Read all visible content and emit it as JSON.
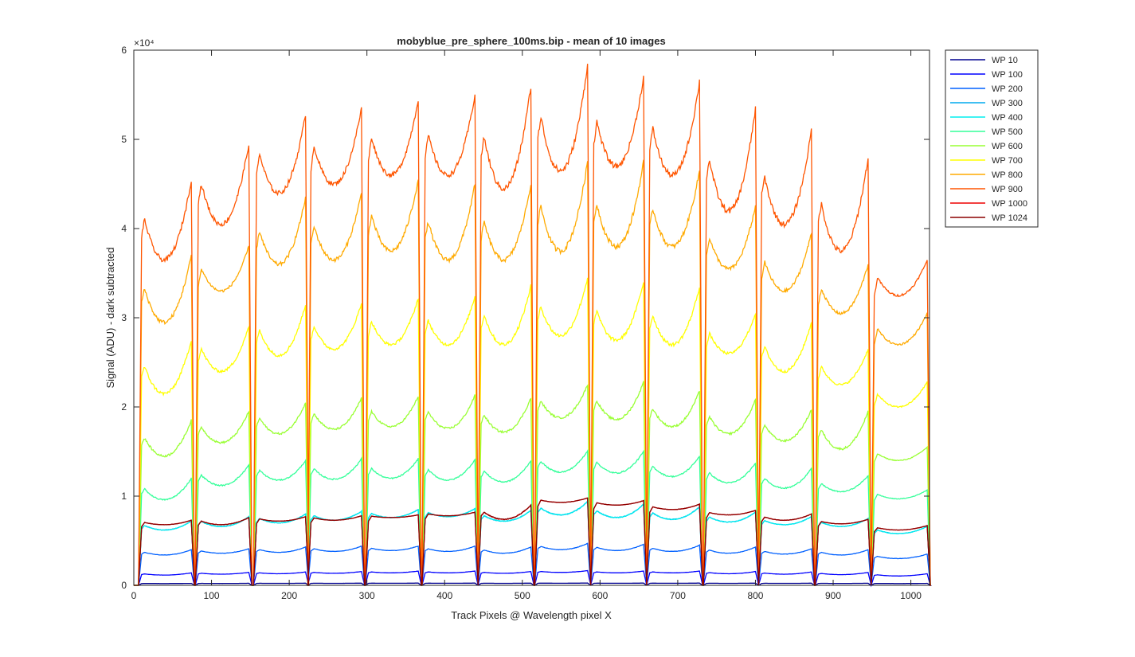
{
  "chart_data": {
    "type": "line",
    "title": "mobyblue_pre_sphere_100ms.bip - mean of 10 images",
    "xlabel": "Track Pixels @ Wavelength pixel X",
    "ylabel": "Signal (ADU) - dark subtracted",
    "xlim": [
      0,
      1024
    ],
    "ylim": [
      0,
      60000
    ],
    "x_ticks": [
      0,
      100,
      200,
      300,
      400,
      500,
      600,
      700,
      800,
      900,
      1000
    ],
    "x_tick_labels": [
      "0",
      "100",
      "200",
      "300",
      "400",
      "500",
      "600",
      "700",
      "800",
      "900",
      "1000"
    ],
    "y_ticks": [
      0,
      10000,
      20000,
      30000,
      40000,
      50000,
      60000
    ],
    "y_tick_labels": [
      "0",
      "1",
      "2",
      "3",
      "4",
      "5",
      "6"
    ],
    "y_exponent_label": "×10⁴",
    "grid": false,
    "legend_position": "outside-top-right",
    "tracks": [
      [
        10,
        74
      ],
      [
        83,
        148
      ],
      [
        158,
        221
      ],
      [
        228,
        293
      ],
      [
        302,
        366
      ],
      [
        375,
        439
      ],
      [
        447,
        511
      ],
      [
        520,
        584
      ],
      [
        592,
        656
      ],
      [
        664,
        728
      ],
      [
        737,
        800
      ],
      [
        808,
        872
      ],
      [
        881,
        945
      ],
      [
        953,
        1021
      ]
    ],
    "series": [
      {
        "name": "WP 10",
        "color": "#00008f",
        "track_levels": [
          [
            200,
            220
          ],
          [
            210,
            230
          ],
          [
            220,
            240
          ],
          [
            225,
            245
          ],
          [
            230,
            250
          ],
          [
            230,
            250
          ],
          [
            225,
            245
          ],
          [
            235,
            255
          ],
          [
            230,
            250
          ],
          [
            230,
            250
          ],
          [
            225,
            245
          ],
          [
            220,
            240
          ],
          [
            215,
            235
          ],
          [
            200,
            220
          ]
        ]
      },
      {
        "name": "WP 100",
        "color": "#0000ff",
        "track_levels": [
          [
            1150,
            1400
          ],
          [
            1250,
            1450
          ],
          [
            1300,
            1500
          ],
          [
            1350,
            1550
          ],
          [
            1400,
            1600
          ],
          [
            1400,
            1600
          ],
          [
            1350,
            1550
          ],
          [
            1450,
            1650
          ],
          [
            1400,
            1600
          ],
          [
            1400,
            1600
          ],
          [
            1300,
            1550
          ],
          [
            1250,
            1500
          ],
          [
            1200,
            1450
          ],
          [
            1050,
            1300
          ]
        ]
      },
      {
        "name": "WP 200",
        "color": "#0060ff",
        "track_levels": [
          [
            3400,
            4000
          ],
          [
            3600,
            4100
          ],
          [
            3700,
            4300
          ],
          [
            3800,
            4400
          ],
          [
            3900,
            4400
          ],
          [
            3800,
            4400
          ],
          [
            3600,
            4300
          ],
          [
            4000,
            4700
          ],
          [
            3900,
            4600
          ],
          [
            3800,
            4500
          ],
          [
            3600,
            4300
          ],
          [
            3500,
            4100
          ],
          [
            3400,
            4000
          ],
          [
            3000,
            3500
          ]
        ]
      },
      {
        "name": "WP 300",
        "color": "#00aaee",
        "track_levels": [
          [
            6200,
            7200
          ],
          [
            6600,
            7700
          ],
          [
            7000,
            8000
          ],
          [
            7300,
            8300
          ],
          [
            7600,
            8500
          ],
          [
            7700,
            8600
          ],
          [
            7200,
            8400
          ],
          [
            7900,
            9400
          ],
          [
            7600,
            9100
          ],
          [
            7400,
            8800
          ],
          [
            7100,
            8200
          ],
          [
            6800,
            7700
          ],
          [
            6600,
            7500
          ],
          [
            5800,
            6600
          ]
        ]
      },
      {
        "name": "WP 400",
        "color": "#00eeee",
        "track_levels": [
          [
            6200,
            7200
          ],
          [
            6600,
            7700
          ],
          [
            7000,
            8000
          ],
          [
            7300,
            8300
          ],
          [
            7600,
            8500
          ],
          [
            7700,
            8600
          ],
          [
            7200,
            8400
          ],
          [
            7900,
            9400
          ],
          [
            7600,
            9100
          ],
          [
            7400,
            8800
          ],
          [
            7100,
            8200
          ],
          [
            6800,
            7700
          ],
          [
            6600,
            7500
          ],
          [
            5800,
            6600
          ]
        ]
      },
      {
        "name": "WP 500",
        "color": "#33ff99",
        "track_levels": [
          [
            9600,
            12000
          ],
          [
            11200,
            13500
          ],
          [
            11800,
            14000
          ],
          [
            11900,
            14200
          ],
          [
            12000,
            14200
          ],
          [
            11800,
            14100
          ],
          [
            11600,
            14000
          ],
          [
            12700,
            15100
          ],
          [
            12600,
            15000
          ],
          [
            12200,
            14500
          ],
          [
            11500,
            13700
          ],
          [
            10900,
            13100
          ],
          [
            10500,
            12300
          ],
          [
            9700,
            10700
          ]
        ]
      },
      {
        "name": "WP 600",
        "color": "#99ff33",
        "track_levels": [
          [
            14500,
            18500
          ],
          [
            16000,
            19500
          ],
          [
            17000,
            20500
          ],
          [
            17500,
            21000
          ],
          [
            17800,
            21200
          ],
          [
            17600,
            21300
          ],
          [
            17200,
            21000
          ],
          [
            18800,
            22500
          ],
          [
            18600,
            22800
          ],
          [
            17800,
            21800
          ],
          [
            17000,
            20800
          ],
          [
            16200,
            19700
          ],
          [
            15300,
            19500
          ],
          [
            14000,
            15500
          ]
        ]
      },
      {
        "name": "WP 700",
        "color": "#ffff00",
        "track_levels": [
          [
            21500,
            27500
          ],
          [
            24000,
            29000
          ],
          [
            25800,
            31500
          ],
          [
            26500,
            31600
          ],
          [
            27000,
            32200
          ],
          [
            27000,
            32400
          ],
          [
            27000,
            33600
          ],
          [
            28000,
            34500
          ],
          [
            27500,
            34000
          ],
          [
            27000,
            33500
          ],
          [
            26000,
            30500
          ],
          [
            24000,
            29500
          ],
          [
            22500,
            26500
          ],
          [
            20000,
            22800
          ]
        ]
      },
      {
        "name": "WP 800",
        "color": "#ffaa00",
        "track_levels": [
          [
            29500,
            37000
          ],
          [
            33000,
            38000
          ],
          [
            36000,
            43500
          ],
          [
            36500,
            44000
          ],
          [
            37500,
            45500
          ],
          [
            36500,
            45000
          ],
          [
            36500,
            45000
          ],
          [
            37500,
            47500
          ],
          [
            38000,
            47500
          ],
          [
            38000,
            46500
          ],
          [
            35500,
            42500
          ],
          [
            33000,
            39500
          ],
          [
            30500,
            36000
          ],
          [
            27000,
            30500
          ]
        ]
      },
      {
        "name": "WP 900",
        "color": "#ff5500",
        "track_levels": [
          [
            36500,
            45500
          ],
          [
            40500,
            49500
          ],
          [
            44000,
            52800
          ],
          [
            45000,
            53500
          ],
          [
            46000,
            54500
          ],
          [
            46000,
            55000
          ],
          [
            44500,
            56000
          ],
          [
            46500,
            58500
          ],
          [
            47000,
            57000
          ],
          [
            46000,
            56500
          ],
          [
            42000,
            53500
          ],
          [
            40500,
            51000
          ],
          [
            37500,
            48000
          ],
          [
            32500,
            36500
          ]
        ]
      },
      {
        "name": "WP 1000",
        "color": "#ee0000",
        "track_levels": [
          [
            6800,
            7300
          ],
          [
            6800,
            7600
          ],
          [
            7200,
            7700
          ],
          [
            7300,
            7800
          ],
          [
            7600,
            7900
          ],
          [
            7800,
            8200
          ],
          [
            7400,
            9000
          ],
          [
            9300,
            9800
          ],
          [
            9000,
            9500
          ],
          [
            8500,
            9100
          ],
          [
            7900,
            8400
          ],
          [
            7300,
            8000
          ],
          [
            6900,
            7400
          ],
          [
            6200,
            6700
          ]
        ]
      },
      {
        "name": "WP 1024",
        "color": "#8b0000",
        "track_levels": [
          [
            6800,
            7300
          ],
          [
            6800,
            7600
          ],
          [
            7200,
            7700
          ],
          [
            7300,
            7800
          ],
          [
            7600,
            7900
          ],
          [
            7800,
            8200
          ],
          [
            7400,
            9000
          ],
          [
            9300,
            9800
          ],
          [
            9000,
            9500
          ],
          [
            8500,
            9100
          ],
          [
            7900,
            8400
          ],
          [
            7300,
            8000
          ],
          [
            6900,
            7400
          ],
          [
            6200,
            6700
          ]
        ]
      }
    ]
  }
}
